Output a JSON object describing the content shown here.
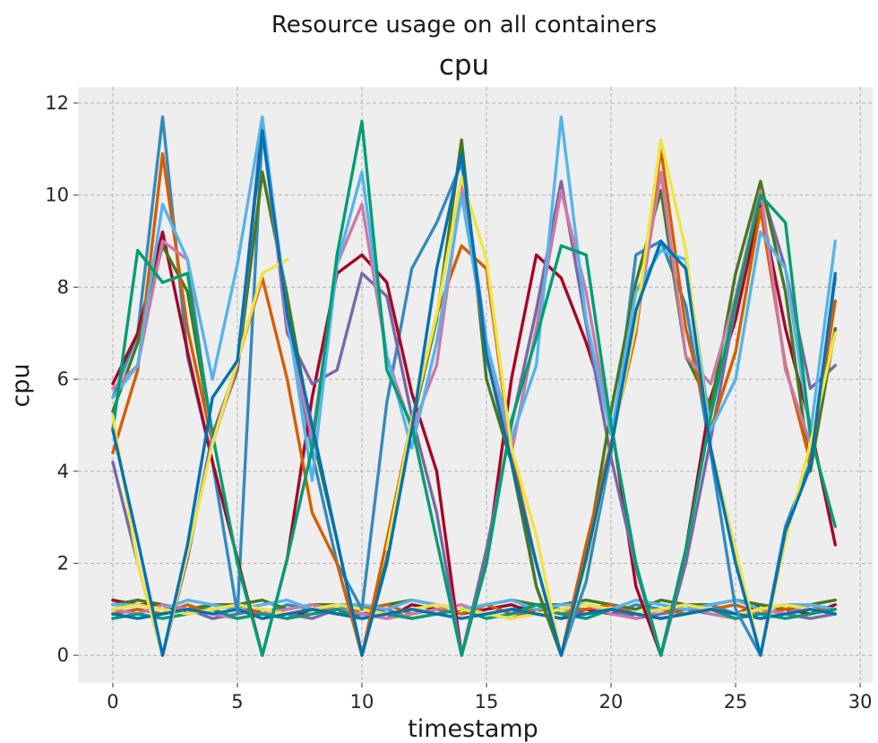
{
  "chart_data": {
    "type": "line",
    "suptitle": "Resource usage on all containers",
    "title": "cpu",
    "xlabel": "timestamp",
    "ylabel": "cpu",
    "xlim": [
      -1.4,
      30.5
    ],
    "ylim": [
      -0.6,
      12.35
    ],
    "xticks": [
      0,
      5,
      10,
      15,
      20,
      25,
      30
    ],
    "yticks": [
      0,
      2,
      4,
      6,
      8,
      10,
      12
    ],
    "grid": true,
    "style": "bmh",
    "background": "#eeeeee",
    "x": [
      0,
      1,
      2,
      3,
      4,
      5,
      6,
      7,
      8,
      9,
      10,
      11,
      12,
      13,
      14,
      15,
      16,
      17,
      18,
      19,
      20,
      21,
      22,
      23,
      24,
      25,
      26,
      27,
      28,
      29
    ],
    "colors": [
      "#348abd",
      "#a60628",
      "#7a68a6",
      "#467821",
      "#d55e00",
      "#cc79a7",
      "#56b4e9",
      "#009e73",
      "#f0e442",
      "#0072b2"
    ],
    "series": [
      {
        "color": "#348abd",
        "values": [
          5.6,
          7.0,
          11.7,
          6.5,
          4.2,
          0.9,
          11.4,
          7.5,
          4.4,
          2.0,
          1.0,
          5.5,
          8.4,
          9.4,
          10.7,
          6.8,
          4.5,
          1.5,
          0.0,
          1.6,
          4.4,
          8.7,
          9.0,
          7.6,
          4.4,
          1.0,
          0.0,
          2.8,
          4.2,
          8.2
        ]
      },
      {
        "color": "#a60628",
        "values": [
          5.9,
          7.0,
          9.2,
          6.6,
          4.2,
          2.1,
          0.0,
          2.1,
          5.6,
          8.3,
          8.7,
          8.1,
          5.7,
          4.0,
          0.0,
          2.0,
          6.0,
          8.7,
          8.2,
          6.8,
          5.1,
          1.5,
          0.0,
          2.3,
          5.6,
          7.3,
          9.8,
          7.1,
          5.0,
          2.4
        ]
      },
      {
        "color": "#7a68a6",
        "values": [
          4.2,
          2.0,
          0.0,
          2.1,
          4.8,
          6.3,
          11.6,
          7.0,
          5.9,
          6.2,
          8.3,
          7.8,
          5.2,
          3.1,
          0.0,
          2.3,
          5.0,
          7.5,
          10.3,
          7.2,
          4.3,
          1.9,
          0.0,
          2.0,
          4.7,
          7.6,
          10.2,
          8.4,
          5.8,
          6.3
        ]
      },
      {
        "color": "#467821",
        "values": [
          5.3,
          6.8,
          8.9,
          7.9,
          4.7,
          6.2,
          10.5,
          7.8,
          4.8,
          2.5,
          0.0,
          2.1,
          5.0,
          7.3,
          11.2,
          6.0,
          4.2,
          1.5,
          0.0,
          2.1,
          5.3,
          8.1,
          10.1,
          6.5,
          5.4,
          8.3,
          10.3,
          7.9,
          4.0,
          7.1
        ]
      },
      {
        "color": "#d55e00",
        "values": [
          4.4,
          6.2,
          10.9,
          7.1,
          4.6,
          6.4,
          8.2,
          6.0,
          3.1,
          2.0,
          0.0,
          2.5,
          5.1,
          7.4,
          8.9,
          8.4,
          4.4,
          2.0,
          0.0,
          2.4,
          4.6,
          7.0,
          11.0,
          7.1,
          4.9,
          6.6,
          9.7,
          6.3,
          4.2,
          7.7
        ]
      },
      {
        "color": "#cc79a7",
        "values": [
          5.8,
          6.3,
          9.0,
          8.6,
          4.6,
          6.3,
          11.4,
          7.2,
          4.7,
          8.5,
          9.8,
          6.5,
          4.9,
          6.3,
          10.2,
          6.6,
          4.4,
          7.1,
          10.1,
          7.9,
          4.8,
          7.1,
          10.5,
          6.5,
          5.9,
          7.8,
          10.1,
          6.2,
          4.6,
          7.0
        ]
      },
      {
        "color": "#56b4e9",
        "values": [
          5.6,
          6.3,
          9.8,
          8.6,
          6.0,
          8.5,
          11.7,
          7.4,
          3.8,
          8.5,
          10.5,
          6.5,
          4.5,
          6.8,
          10.0,
          6.8,
          4.7,
          6.3,
          11.7,
          7.3,
          4.8,
          7.9,
          8.8,
          8.6,
          4.9,
          6.0,
          9.2,
          8.4,
          4.8,
          9.0
        ]
      },
      {
        "color": "#009e73",
        "values": [
          4.9,
          8.8,
          8.1,
          8.3,
          4.8,
          2.0,
          0.0,
          2.1,
          4.5,
          8.7,
          11.6,
          6.2,
          5.0,
          2.5,
          0.0,
          2.0,
          5.1,
          6.9,
          8.9,
          8.7,
          5.0,
          2.0,
          0.0,
          2.3,
          5.2,
          7.7,
          10.0,
          9.4,
          4.8,
          2.8
        ]
      },
      {
        "color": "#f0e442",
        "values": [
          5.2,
          2.0,
          0.0,
          2.2,
          4.6,
          6.4,
          8.3,
          8.6,
          null,
          null,
          null,
          2.3,
          5.1,
          7.4,
          10.4,
          8.6,
          4.5,
          2.6,
          0.0,
          2.0,
          4.5,
          7.2,
          11.2,
          8.8,
          4.5,
          2.3,
          0.0,
          2.5,
          4.6,
          7.0
        ]
      },
      {
        "color": "#0072b2",
        "values": [
          4.9,
          2.5,
          0.0,
          2.4,
          5.6,
          6.4,
          11.4,
          7.4,
          5.0,
          2.5,
          0.0,
          2.0,
          4.9,
          8.4,
          10.9,
          6.5,
          4.2,
          2.0,
          0.0,
          2.1,
          4.5,
          7.5,
          9.0,
          8.4,
          4.5,
          2.0,
          0.0,
          2.7,
          4.1,
          8.3
        ]
      },
      {
        "color": "#348abd",
        "values": [
          1.0,
          1.1,
          1.0,
          0.9,
          1.1,
          1.0,
          0.9,
          1.1,
          1.0,
          1.0,
          1.1,
          0.9,
          1.0,
          1.1,
          1.0,
          0.9,
          1.0,
          1.1,
          1.0,
          1.0,
          0.9,
          1.1,
          1.0,
          1.0,
          1.1,
          0.9,
          1.0,
          1.1,
          1.0,
          0.9
        ]
      },
      {
        "color": "#a60628",
        "values": [
          1.2,
          1.1,
          1.1,
          0.9,
          1.0,
          1.1,
          0.9,
          0.8,
          1.0,
          0.9,
          0.9,
          0.8,
          1.1,
          1.0,
          0.9,
          1.0,
          1.1,
          0.9,
          0.8,
          1.0,
          0.9,
          0.9,
          0.8,
          0.9,
          1.0,
          0.9,
          1.1,
          1.0,
          0.9,
          1.1
        ]
      },
      {
        "color": "#7a68a6",
        "values": [
          0.9,
          1.0,
          0.9,
          1.0,
          0.8,
          0.9,
          1.0,
          0.9,
          0.8,
          1.0,
          0.9,
          1.0,
          0.8,
          0.9,
          1.0,
          0.9,
          0.8,
          1.0,
          0.9,
          0.9,
          1.0,
          0.8,
          0.9,
          1.0,
          0.9,
          0.8,
          1.0,
          0.9,
          0.8,
          0.9
        ]
      },
      {
        "color": "#467821",
        "values": [
          1.1,
          1.2,
          1.1,
          1.0,
          1.1,
          1.1,
          1.2,
          1.0,
          1.1,
          1.1,
          1.0,
          1.1,
          1.2,
          1.1,
          1.0,
          1.1,
          1.2,
          1.1,
          1.1,
          1.2,
          1.1,
          1.0,
          1.2,
          1.1,
          1.1,
          1.2,
          1.1,
          1.0,
          1.1,
          1.2
        ]
      },
      {
        "color": "#d55e00",
        "values": [
          0.9,
          1.0,
          0.9,
          1.1,
          0.9,
          1.0,
          0.9,
          1.0,
          1.1,
          0.9,
          1.0,
          1.1,
          0.9,
          1.0,
          0.9,
          1.1,
          0.9,
          1.0,
          0.9,
          1.0,
          1.1,
          0.9,
          1.0,
          0.9,
          1.0,
          1.1,
          0.9,
          1.0,
          1.1,
          0.9
        ]
      },
      {
        "color": "#cc79a7",
        "values": [
          1.0,
          0.9,
          1.1,
          1.0,
          0.9,
          0.8,
          0.9,
          1.0,
          1.1,
          1.0,
          0.9,
          0.8,
          0.9,
          1.0,
          1.1,
          0.9,
          0.8,
          0.9,
          1.0,
          1.1,
          0.9,
          0.8,
          1.0,
          1.1,
          0.9,
          0.8,
          1.0,
          0.9,
          1.1,
          1.0
        ]
      },
      {
        "color": "#56b4e9",
        "values": [
          1.1,
          1.1,
          1.0,
          1.2,
          1.1,
          1.0,
          1.1,
          1.2,
          1.0,
          1.1,
          1.1,
          1.0,
          1.2,
          1.1,
          1.0,
          1.1,
          1.2,
          1.0,
          1.1,
          1.1,
          1.0,
          1.2,
          1.1,
          1.0,
          1.1,
          1.2,
          1.0,
          1.1,
          1.1,
          1.0
        ]
      },
      {
        "color": "#009e73",
        "values": [
          0.8,
          0.9,
          0.8,
          0.9,
          1.0,
          0.8,
          0.9,
          0.8,
          0.9,
          1.0,
          0.8,
          0.9,
          0.8,
          0.9,
          1.0,
          0.8,
          0.9,
          1.1,
          0.9,
          0.8,
          1.0,
          0.9,
          0.8,
          0.9,
          1.0,
          0.8,
          0.9,
          0.8,
          0.9,
          1.0
        ]
      },
      {
        "color": "#f0e442",
        "values": [
          1.0,
          1.1,
          1.0,
          0.9,
          1.0,
          1.1,
          1.0,
          0.9,
          1.0,
          1.1,
          1.0,
          0.9,
          1.0,
          1.1,
          1.0,
          0.9,
          0.8,
          0.9,
          1.0,
          1.1,
          1.0,
          0.9,
          1.0,
          1.1,
          1.0,
          0.9,
          1.0,
          1.1,
          1.0,
          0.9
        ]
      },
      {
        "color": "#0072b2",
        "values": [
          0.9,
          0.8,
          0.9,
          1.0,
          0.9,
          1.0,
          0.8,
          0.9,
          1.0,
          0.9,
          0.8,
          0.9,
          1.0,
          0.9,
          0.8,
          0.9,
          1.0,
          0.9,
          0.8,
          0.9,
          1.0,
          0.9,
          0.8,
          0.9,
          1.0,
          0.9,
          0.8,
          0.9,
          1.0,
          0.9
        ]
      }
    ]
  }
}
